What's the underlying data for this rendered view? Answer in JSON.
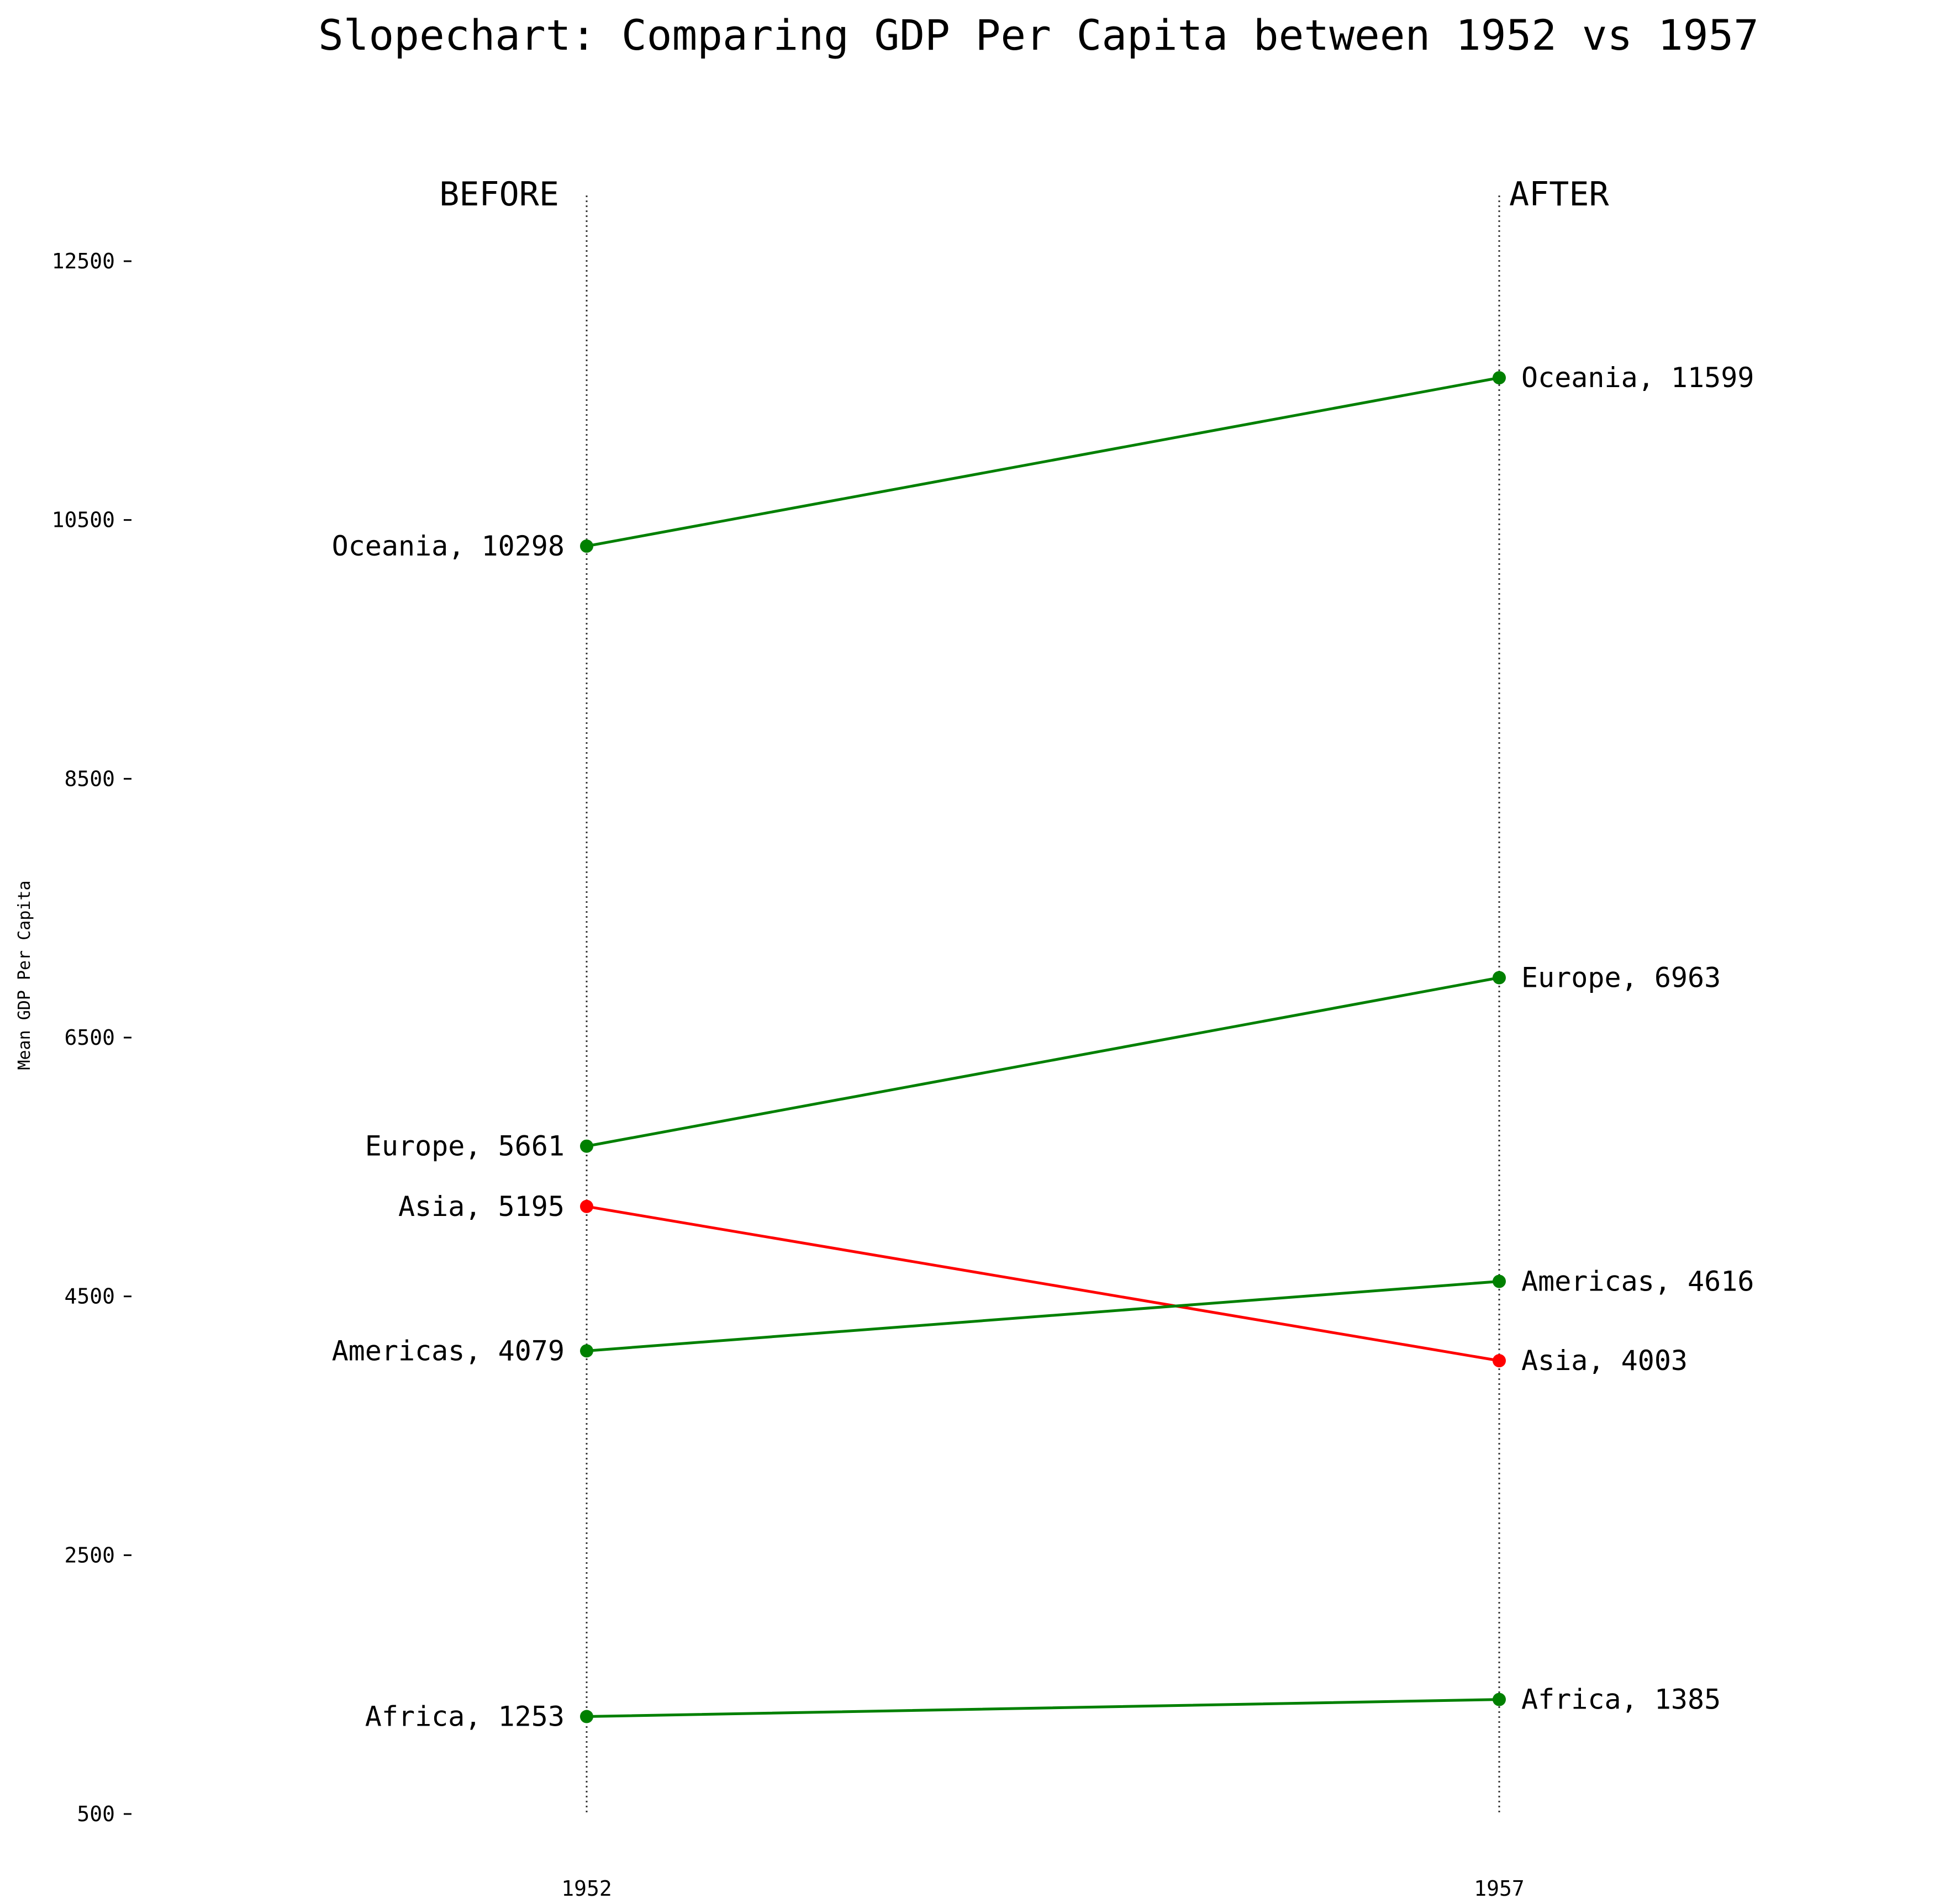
{
  "chart_data": {
    "type": "line",
    "title": "Slopechart: Comparing GDP Per Capita between 1952 vs 1957",
    "ylabel": "Mean GDP Per Capita",
    "xlabel": "",
    "ylim": [
      500,
      13000
    ],
    "yticks": [
      500,
      2500,
      4500,
      6500,
      8500,
      10500,
      12500
    ],
    "x": [
      "1952",
      "1957"
    ],
    "left_header": "BEFORE",
    "right_header": "AFTER",
    "grid": false,
    "series": [
      {
        "name": "Oceania",
        "values": [
          10298,
          11599
        ],
        "left_label": "Oceania, 10298",
        "right_label": "Oceania, 11599",
        "color": "#008000"
      },
      {
        "name": "Europe",
        "values": [
          5661,
          6963
        ],
        "left_label": "Europe, 5661",
        "right_label": "Europe, 6963",
        "color": "#008000"
      },
      {
        "name": "Asia",
        "values": [
          5195,
          4003
        ],
        "left_label": "Asia, 5195",
        "right_label": "Asia, 4003",
        "color": "#ff0000"
      },
      {
        "name": "Americas",
        "values": [
          4079,
          4616
        ],
        "left_label": "Americas, 4079",
        "right_label": "Americas, 4616",
        "color": "#008000"
      },
      {
        "name": "Africa",
        "values": [
          1253,
          1385
        ],
        "left_label": "Africa, 1253",
        "right_label": "Africa, 1385",
        "color": "#008000"
      }
    ]
  }
}
